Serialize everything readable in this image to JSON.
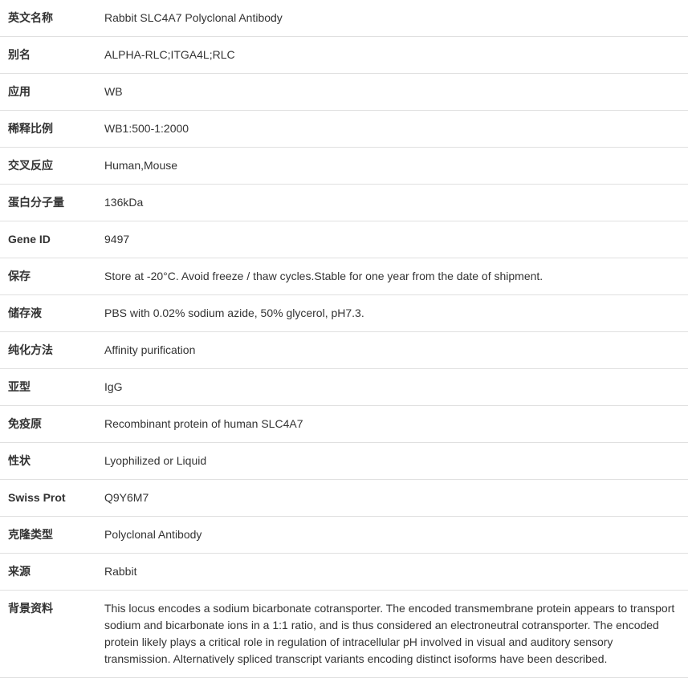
{
  "table": {
    "rows": [
      {
        "label": "英文名称",
        "value": "Rabbit SLC4A7 Polyclonal Antibody"
      },
      {
        "label": "别名",
        "value": "ALPHA-RLC;ITGA4L;RLC"
      },
      {
        "label": "应用",
        "value": "WB"
      },
      {
        "label": "稀释比例",
        "value": "WB1:500-1:2000"
      },
      {
        "label": "交叉反应",
        "value": "Human,Mouse"
      },
      {
        "label": "蛋白分子量",
        "value": "136kDa"
      },
      {
        "label": "Gene ID",
        "value": "9497"
      },
      {
        "label": "保存",
        "value": "Store at -20°C. Avoid freeze / thaw cycles.Stable for one year from the date of shipment."
      },
      {
        "label": "储存液",
        "value": "PBS with 0.02% sodium azide, 50% glycerol, pH7.3."
      },
      {
        "label": "纯化方法",
        "value": "Affinity purification"
      },
      {
        "label": "亚型",
        "value": "IgG"
      },
      {
        "label": "免疫原",
        "value": "Recombinant protein of human SLC4A7"
      },
      {
        "label": "性状",
        "value": "Lyophilized or Liquid"
      },
      {
        "label": "Swiss Prot",
        "value": "Q9Y6M7"
      },
      {
        "label": "克隆类型",
        "value": "Polyclonal Antibody"
      },
      {
        "label": "来源",
        "value": "Rabbit"
      },
      {
        "label": "背景资料",
        "value": "This locus encodes a sodium bicarbonate cotransporter. The encoded transmembrane protein appears to transport sodium and bicarbonate ions in a 1:1 ratio, and is thus considered an electroneutral cotransporter. The encoded protein likely plays a critical role in regulation of intracellular pH involved in visual and auditory sensory transmission. Alternatively spliced transcript variants encoding distinct isoforms have been described."
      }
    ]
  },
  "styling": {
    "font_family": "Microsoft YaHei, PingFang SC, Arial, sans-serif",
    "font_size": 14,
    "text_color": "#333333",
    "background_color": "#ffffff",
    "border_color": "#e0e0e0",
    "label_column_width": 120,
    "cell_padding": "12px 10px",
    "line_height": 1.5
  }
}
